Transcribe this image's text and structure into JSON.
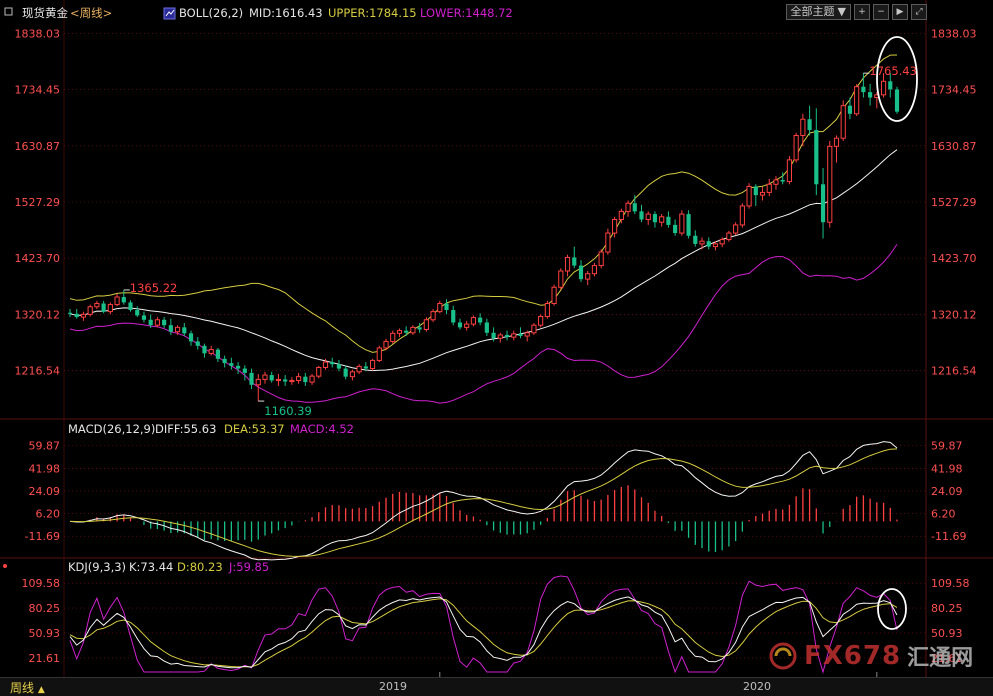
{
  "colors": {
    "up": "#ff4040",
    "down": "#19c08a",
    "mid": "#f4f4f4",
    "upper": "#d6cc40",
    "lower": "#d020d0",
    "diff": "#f4f4f4",
    "dea": "#d6cc40",
    "macd": "#d020d0",
    "k": "#f4f4f4",
    "d": "#d6cc40",
    "j": "#d020d0",
    "axis_text": "#ff5050",
    "grid": "#7a1010"
  },
  "header": {
    "instrument": "现货黄金",
    "period_tag": "<周线>",
    "boll_name": "BOLL(26,2)",
    "mid_label": "MID:1616.43",
    "upper_label": "UPPER:1784.15",
    "lower_label": "LOWER:1448.72"
  },
  "toolbar": {
    "theme_label": "全部主题",
    "icons": [
      "zoom-in-icon",
      "zoom-out-icon",
      "step-forward-icon",
      "expand-icon"
    ]
  },
  "macd_header": {
    "name": "MACD(26,12,9)",
    "diff_label": "DIFF:55.63",
    "dea_label": "DEA:53.37",
    "macd_label": "MACD:4.52"
  },
  "kdj_header": {
    "name": "KDJ(9,3,3)",
    "k_label": "K:73.44",
    "d_label": "D:80.23",
    "j_label": "J:59.85"
  },
  "bottom": {
    "period": "周线",
    "x_labels": [
      "2019",
      "2020"
    ]
  },
  "watermark": {
    "text": "FX678",
    "cn": "汇通网"
  },
  "chart_data": {
    "type": "candlestick",
    "price_axis": {
      "ticks": [
        "1838.03",
        "1734.45",
        "1630.87",
        "1527.29",
        "1423.70",
        "1320.12",
        "1216.54"
      ],
      "ylim": [
        1138,
        1852
      ]
    },
    "macd_axis": {
      "ticks": [
        "59.87",
        "41.98",
        "24.09",
        "6.20",
        "-11.69"
      ],
      "ylim": [
        -25,
        66
      ]
    },
    "kdj_axis": {
      "ticks": [
        "109.58",
        "80.25",
        "50.93",
        "21.61"
      ],
      "ylim": [
        5,
        118
      ]
    },
    "annotations": {
      "high_label": "1765.43",
      "low_label": "1160.39",
      "prev_high_label": "1365.22"
    },
    "x_tick_index": [
      55,
      120
    ],
    "candles": [
      [
        1323,
        1330,
        1315,
        1321
      ],
      [
        1321,
        1330,
        1312,
        1315
      ],
      [
        1315,
        1325,
        1308,
        1320
      ],
      [
        1320,
        1338,
        1316,
        1334
      ],
      [
        1334,
        1345,
        1330,
        1340
      ],
      [
        1340,
        1345,
        1322,
        1325
      ],
      [
        1325,
        1342,
        1320,
        1338
      ],
      [
        1338,
        1358,
        1335,
        1352
      ],
      [
        1352,
        1365,
        1338,
        1342
      ],
      [
        1342,
        1346,
        1325,
        1328
      ],
      [
        1328,
        1335,
        1315,
        1318
      ],
      [
        1318,
        1325,
        1305,
        1310
      ],
      [
        1310,
        1320,
        1295,
        1300
      ],
      [
        1300,
        1315,
        1296,
        1310
      ],
      [
        1310,
        1315,
        1295,
        1300
      ],
      [
        1300,
        1312,
        1282,
        1288
      ],
      [
        1288,
        1300,
        1282,
        1296
      ],
      [
        1296,
        1304,
        1280,
        1285
      ],
      [
        1285,
        1290,
        1262,
        1270
      ],
      [
        1270,
        1278,
        1255,
        1262
      ],
      [
        1262,
        1266,
        1240,
        1248
      ],
      [
        1248,
        1262,
        1244,
        1255
      ],
      [
        1255,
        1258,
        1232,
        1238
      ],
      [
        1238,
        1244,
        1222,
        1230
      ],
      [
        1230,
        1240,
        1218,
        1225
      ],
      [
        1225,
        1232,
        1210,
        1220
      ],
      [
        1220,
        1226,
        1198,
        1212
      ],
      [
        1212,
        1220,
        1182,
        1190
      ],
      [
        1190,
        1210,
        1160,
        1200
      ],
      [
        1200,
        1214,
        1192,
        1208
      ],
      [
        1208,
        1214,
        1194,
        1198
      ],
      [
        1198,
        1210,
        1188,
        1200
      ],
      [
        1200,
        1208,
        1188,
        1196
      ],
      [
        1196,
        1204,
        1190,
        1198
      ],
      [
        1198,
        1212,
        1192,
        1205
      ],
      [
        1205,
        1212,
        1188,
        1195
      ],
      [
        1195,
        1210,
        1190,
        1206
      ],
      [
        1206,
        1225,
        1202,
        1222
      ],
      [
        1222,
        1238,
        1218,
        1232
      ],
      [
        1232,
        1240,
        1222,
        1228
      ],
      [
        1228,
        1236,
        1215,
        1220
      ],
      [
        1220,
        1225,
        1200,
        1205
      ],
      [
        1205,
        1218,
        1198,
        1214
      ],
      [
        1214,
        1228,
        1210,
        1224
      ],
      [
        1224,
        1232,
        1215,
        1220
      ],
      [
        1220,
        1238,
        1216,
        1235
      ],
      [
        1235,
        1262,
        1232,
        1258
      ],
      [
        1258,
        1275,
        1254,
        1270
      ],
      [
        1270,
        1290,
        1266,
        1285
      ],
      [
        1285,
        1294,
        1278,
        1290
      ],
      [
        1290,
        1298,
        1280,
        1286
      ],
      [
        1286,
        1300,
        1282,
        1296
      ],
      [
        1296,
        1304,
        1286,
        1292
      ],
      [
        1292,
        1315,
        1288,
        1310
      ],
      [
        1310,
        1330,
        1306,
        1325
      ],
      [
        1325,
        1345,
        1322,
        1340
      ],
      [
        1340,
        1348,
        1320,
        1328
      ],
      [
        1328,
        1336,
        1300,
        1305
      ],
      [
        1305,
        1312,
        1292,
        1296
      ],
      [
        1296,
        1308,
        1290,
        1302
      ],
      [
        1302,
        1318,
        1298,
        1314
      ],
      [
        1314,
        1322,
        1300,
        1305
      ],
      [
        1305,
        1312,
        1280,
        1286
      ],
      [
        1286,
        1296,
        1270,
        1276
      ],
      [
        1276,
        1286,
        1268,
        1282
      ],
      [
        1282,
        1290,
        1272,
        1278
      ],
      [
        1278,
        1290,
        1272,
        1284
      ],
      [
        1284,
        1296,
        1276,
        1280
      ],
      [
        1280,
        1290,
        1270,
        1286
      ],
      [
        1286,
        1304,
        1282,
        1300
      ],
      [
        1300,
        1320,
        1296,
        1316
      ],
      [
        1316,
        1345,
        1312,
        1340
      ],
      [
        1340,
        1375,
        1336,
        1370
      ],
      [
        1370,
        1405,
        1366,
        1400
      ],
      [
        1400,
        1430,
        1390,
        1425
      ],
      [
        1425,
        1445,
        1405,
        1410
      ],
      [
        1410,
        1420,
        1380,
        1385
      ],
      [
        1385,
        1400,
        1374,
        1395
      ],
      [
        1395,
        1415,
        1390,
        1410
      ],
      [
        1410,
        1440,
        1405,
        1435
      ],
      [
        1435,
        1478,
        1430,
        1470
      ],
      [
        1470,
        1500,
        1462,
        1495
      ],
      [
        1495,
        1515,
        1488,
        1510
      ],
      [
        1510,
        1530,
        1500,
        1525
      ],
      [
        1525,
        1540,
        1505,
        1510
      ],
      [
        1510,
        1522,
        1490,
        1495
      ],
      [
        1495,
        1510,
        1485,
        1505
      ],
      [
        1505,
        1510,
        1480,
        1490
      ],
      [
        1490,
        1505,
        1482,
        1500
      ],
      [
        1500,
        1510,
        1480,
        1485
      ],
      [
        1485,
        1495,
        1465,
        1470
      ],
      [
        1470,
        1512,
        1465,
        1505
      ],
      [
        1505,
        1512,
        1460,
        1465
      ],
      [
        1465,
        1475,
        1445,
        1450
      ],
      [
        1450,
        1462,
        1440,
        1455
      ],
      [
        1455,
        1462,
        1440,
        1445
      ],
      [
        1445,
        1455,
        1438,
        1450
      ],
      [
        1450,
        1462,
        1444,
        1458
      ],
      [
        1458,
        1474,
        1454,
        1470
      ],
      [
        1470,
        1490,
        1466,
        1485
      ],
      [
        1485,
        1525,
        1480,
        1520
      ],
      [
        1520,
        1562,
        1515,
        1556
      ],
      [
        1556,
        1560,
        1520,
        1540
      ],
      [
        1540,
        1555,
        1530,
        1545
      ],
      [
        1545,
        1570,
        1538,
        1560
      ],
      [
        1560,
        1575,
        1550,
        1568
      ],
      [
        1568,
        1582,
        1560,
        1565
      ],
      [
        1565,
        1612,
        1560,
        1605
      ],
      [
        1605,
        1655,
        1600,
        1650
      ],
      [
        1650,
        1690,
        1630,
        1680
      ],
      [
        1680,
        1705,
        1650,
        1660
      ],
      [
        1660,
        1700,
        1540,
        1560
      ],
      [
        1560,
        1590,
        1460,
        1490
      ],
      [
        1490,
        1640,
        1480,
        1630
      ],
      [
        1630,
        1650,
        1600,
        1645
      ],
      [
        1645,
        1715,
        1640,
        1705
      ],
      [
        1705,
        1720,
        1680,
        1690
      ],
      [
        1690,
        1745,
        1686,
        1740
      ],
      [
        1740,
        1765,
        1720,
        1730
      ],
      [
        1730,
        1745,
        1705,
        1720
      ],
      [
        1720,
        1730,
        1700,
        1725
      ],
      [
        1725,
        1765,
        1720,
        1750
      ],
      [
        1750,
        1765,
        1720,
        1735
      ],
      [
        1735,
        1740,
        1690,
        1694
      ]
    ]
  }
}
